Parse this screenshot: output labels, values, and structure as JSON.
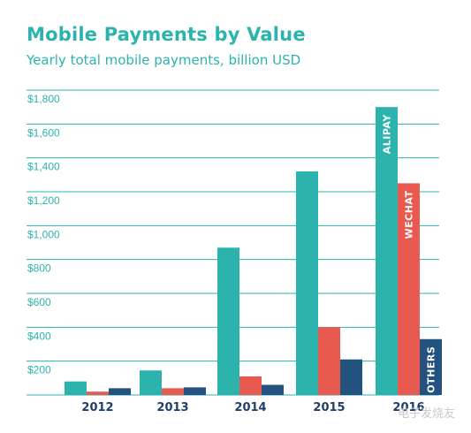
{
  "title": "Mobile Payments by Value",
  "subtitle": "Yearly total mobile payments, billion USD",
  "watermark": "电子发烧友",
  "colors": {
    "alipay": "#2cb3ad",
    "wechat": "#e85a50",
    "others": "#24527f",
    "grid": "#2cb3ad"
  },
  "chart_data": {
    "type": "bar",
    "title": "Mobile Payments by Value",
    "subtitle": "Yearly total mobile payments, billion USD",
    "categories": [
      "2012",
      "2013",
      "2014",
      "2015",
      "2016"
    ],
    "ylim": [
      0,
      1800
    ],
    "yticks": [
      "$200",
      "$400",
      "$600",
      "$800",
      "$1,000",
      "$1,200",
      "$1,400",
      "$1,600",
      "$1,800"
    ],
    "ytick_values": [
      200,
      400,
      600,
      800,
      1000,
      1200,
      1400,
      1600,
      1800
    ],
    "grid": true,
    "series": [
      {
        "name": "ALIPAY",
        "color": "#2cb3ad",
        "values": [
          80,
          145,
          870,
          1320,
          1700
        ]
      },
      {
        "name": "WECHAT",
        "color": "#e85a50",
        "values": [
          20,
          40,
          110,
          400,
          1250
        ]
      },
      {
        "name": "OTHERS",
        "color": "#24527f",
        "values": [
          40,
          45,
          60,
          210,
          330
        ]
      }
    ],
    "series_labels_on_category": "2016"
  }
}
